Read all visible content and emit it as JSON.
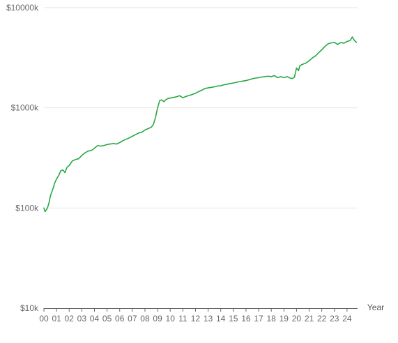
{
  "chart_data": {
    "type": "line",
    "title": "",
    "xlabel": "Year",
    "ylabel": "",
    "y_scale": "log",
    "ylim": [
      10000,
      10000000
    ],
    "xlim": [
      "2000-01",
      "2024-10"
    ],
    "grid": true,
    "legend": "none",
    "x_tick_labels": [
      "00",
      "01",
      "02",
      "03",
      "04",
      "05",
      "06",
      "07",
      "08",
      "09",
      "10",
      "11",
      "12",
      "13",
      "14",
      "15",
      "16",
      "17",
      "18",
      "19",
      "20",
      "21",
      "22",
      "23",
      "24"
    ],
    "y_ticks": [
      10000,
      100000,
      1000000,
      10000000
    ],
    "y_tick_labels": [
      "$10k",
      "$100k",
      "$1000k",
      "$10000k"
    ],
    "colors": {
      "line": "#27a844",
      "grid": "#e6e6e6",
      "axis": "#666666",
      "text": "#666666"
    },
    "series": [
      {
        "x": [
          "2000-01",
          "2000-02",
          "2000-03",
          "2000-04",
          "2000-05",
          "2000-06",
          "2000-07",
          "2000-08",
          "2000-09",
          "2000-10",
          "2000-11",
          "2001-01",
          "2001-03",
          "2001-05",
          "2001-07",
          "2001-09",
          "2001-11",
          "2002-01",
          "2002-04",
          "2002-07",
          "2002-10",
          "2003-01",
          "2003-04",
          "2003-07",
          "2003-10",
          "2004-01",
          "2004-04",
          "2004-07",
          "2004-10",
          "2005-01",
          "2005-04",
          "2005-07",
          "2005-10",
          "2006-01",
          "2006-04",
          "2006-07",
          "2006-10",
          "2007-01",
          "2007-04",
          "2007-07",
          "2007-10",
          "2008-01",
          "2008-04",
          "2008-07",
          "2008-09",
          "2008-11",
          "2009-01",
          "2009-03",
          "2009-05",
          "2009-07",
          "2009-09",
          "2009-11",
          "2010-01",
          "2010-04",
          "2010-07",
          "2010-10",
          "2011-01",
          "2011-04",
          "2011-07",
          "2011-10",
          "2012-01",
          "2012-04",
          "2012-07",
          "2012-10",
          "2013-01",
          "2013-04",
          "2013-07",
          "2013-10",
          "2014-01",
          "2014-04",
          "2014-07",
          "2014-10",
          "2015-01",
          "2015-04",
          "2015-07",
          "2015-10",
          "2016-01",
          "2016-04",
          "2016-07",
          "2016-10",
          "2017-01",
          "2017-04",
          "2017-07",
          "2017-10",
          "2018-01",
          "2018-04",
          "2018-07",
          "2018-10",
          "2019-01",
          "2019-04",
          "2019-07",
          "2019-09",
          "2019-11",
          "2020-01",
          "2020-03",
          "2020-04",
          "2020-06",
          "2020-08",
          "2020-10",
          "2021-01",
          "2021-04",
          "2021-07",
          "2021-10",
          "2022-01",
          "2022-04",
          "2022-07",
          "2022-10",
          "2023-01",
          "2023-04",
          "2023-07",
          "2023-10",
          "2024-01",
          "2024-04",
          "2024-06",
          "2024-08",
          "2024-10"
        ],
        "y": [
          100000,
          92000,
          95000,
          98000,
          105000,
          115000,
          130000,
          140000,
          150000,
          160000,
          175000,
          195000,
          210000,
          235000,
          240000,
          225000,
          255000,
          265000,
          295000,
          305000,
          310000,
          335000,
          355000,
          370000,
          375000,
          395000,
          420000,
          415000,
          420000,
          430000,
          435000,
          440000,
          435000,
          450000,
          470000,
          485000,
          500000,
          520000,
          540000,
          560000,
          570000,
          600000,
          620000,
          640000,
          680000,
          800000,
          1000000,
          1180000,
          1200000,
          1150000,
          1210000,
          1240000,
          1250000,
          1270000,
          1290000,
          1320000,
          1260000,
          1300000,
          1330000,
          1360000,
          1400000,
          1450000,
          1500000,
          1560000,
          1580000,
          1600000,
          1620000,
          1650000,
          1660000,
          1700000,
          1720000,
          1750000,
          1770000,
          1800000,
          1830000,
          1850000,
          1870000,
          1910000,
          1950000,
          1980000,
          2000000,
          2030000,
          2050000,
          2070000,
          2050000,
          2100000,
          2000000,
          2050000,
          2000000,
          2050000,
          1980000,
          1960000,
          2020000,
          2500000,
          2350000,
          2620000,
          2700000,
          2750000,
          2800000,
          2950000,
          3150000,
          3300000,
          3550000,
          3800000,
          4100000,
          4350000,
          4450000,
          4500000,
          4300000,
          4480000,
          4420000,
          4600000,
          4700000,
          5100000,
          4700000,
          4500000
        ]
      }
    ]
  }
}
